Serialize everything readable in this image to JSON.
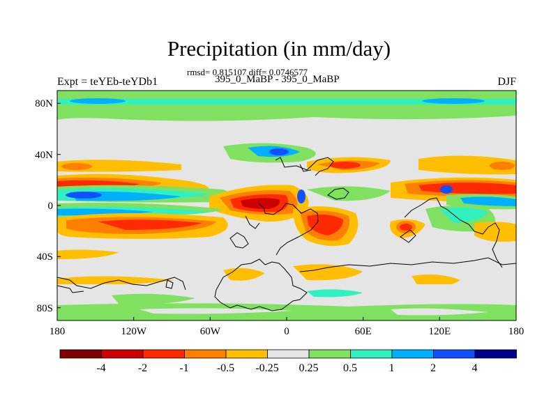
{
  "figure": {
    "title": "Precipitation (in mm/day)",
    "stats": "rmsd= 0.815107 diff= 0.0746577",
    "expt_label": "Expt = teYEb-teYDb1",
    "periods": "395_0_MaBP - 395_0_MaBP",
    "season": "DJF"
  },
  "axes": {
    "lon_ticks": [
      "180",
      "120W",
      "60W",
      "0",
      "60E",
      "120E",
      "180"
    ],
    "lat_ticks": [
      "80N",
      "40N",
      "0",
      "40S",
      "80S"
    ],
    "lon_range": [
      -180,
      180
    ],
    "lat_range": [
      -90,
      90
    ]
  },
  "colorbar": {
    "levels": [
      "-4",
      "-2",
      "-1",
      "-0.5",
      "-0.25",
      "0.25",
      "0.5",
      "1",
      "2",
      "4"
    ],
    "colors": [
      "#7f0000",
      "#cc0000",
      "#ff2a00",
      "#ff7f00",
      "#ffbf00",
      "#e5e5e5",
      "#80e060",
      "#30f0c0",
      "#00b0ff",
      "#1050ff",
      "#00008b"
    ]
  }
}
